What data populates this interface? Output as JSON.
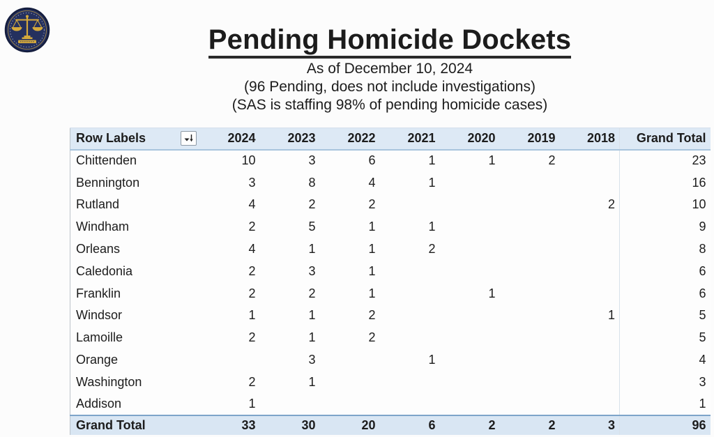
{
  "header": {
    "title": "Pending Homicide Dockets",
    "subtitle_date": "As of December 10, 2024",
    "subtitle_pending": "(96 Pending, does not include investigations)",
    "subtitle_staffing": "(SAS is staffing 98% of pending homicide cases)"
  },
  "icons": {
    "seal": "scales-of-justice-seal",
    "filter": "sort-filter-icon"
  },
  "table": {
    "row_label_header": "Row Labels",
    "columns": [
      "2024",
      "2023",
      "2022",
      "2021",
      "2020",
      "2019",
      "2018",
      "Grand Total"
    ],
    "rows": [
      {
        "label": "Chittenden",
        "values": [
          "10",
          "3",
          "6",
          "1",
          "1",
          "2",
          "",
          "23"
        ]
      },
      {
        "label": "Bennington",
        "values": [
          "3",
          "8",
          "4",
          "1",
          "",
          "",
          "",
          "16"
        ]
      },
      {
        "label": "Rutland",
        "values": [
          "4",
          "2",
          "2",
          "",
          "",
          "",
          "2",
          "10"
        ]
      },
      {
        "label": "Windham",
        "values": [
          "2",
          "5",
          "1",
          "1",
          "",
          "",
          "",
          "9"
        ]
      },
      {
        "label": "Orleans",
        "values": [
          "4",
          "1",
          "1",
          "2",
          "",
          "",
          "",
          "8"
        ]
      },
      {
        "label": "Caledonia",
        "values": [
          "2",
          "3",
          "1",
          "",
          "",
          "",
          "",
          "6"
        ]
      },
      {
        "label": "Franklin",
        "values": [
          "2",
          "2",
          "1",
          "",
          "1",
          "",
          "",
          "6"
        ]
      },
      {
        "label": "Windsor",
        "values": [
          "1",
          "1",
          "2",
          "",
          "",
          "",
          "1",
          "5"
        ]
      },
      {
        "label": "Lamoille",
        "values": [
          "2",
          "1",
          "2",
          "",
          "",
          "",
          "",
          "5"
        ]
      },
      {
        "label": "Orange",
        "values": [
          "",
          "3",
          "",
          "1",
          "",
          "",
          "",
          "4"
        ]
      },
      {
        "label": "Washington",
        "values": [
          "2",
          "1",
          "",
          "",
          "",
          "",
          "",
          "3"
        ]
      },
      {
        "label": "Addison",
        "values": [
          "1",
          "",
          "",
          "",
          "",
          "",
          "",
          "1"
        ]
      }
    ],
    "grand_total": {
      "label": "Grand Total",
      "values": [
        "33",
        "30",
        "20",
        "6",
        "2",
        "2",
        "3",
        "96"
      ]
    }
  },
  "colors": {
    "header_bg": "#dde9f5",
    "total_bg": "#d9e6f3",
    "total_border": "#7da4c9",
    "seal_navy": "#24305e",
    "seal_gold": "#d4a93c"
  }
}
